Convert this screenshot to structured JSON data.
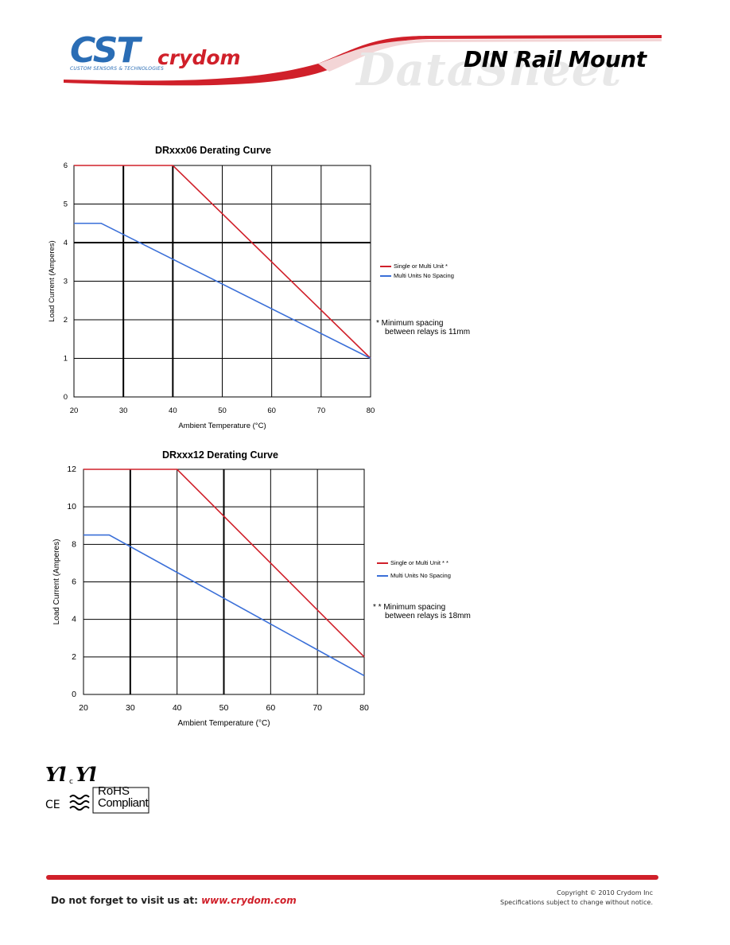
{
  "header": {
    "brand_cst": "CST",
    "brand_cst_subtitle": "CUSTOM SENSORS & TECHNOLOGIES",
    "brand_crydom": "crydom",
    "watermark": "DataSheet",
    "product_family": "DIN Rail Mount",
    "accent_color": "#d0202a",
    "brand_blue": "#2a6db5"
  },
  "charts": [
    {
      "title": "DRxxx06 Derating Curve",
      "legend": [
        {
          "label": "Single or Multi Unit *",
          "color": "#d0202a"
        },
        {
          "label": "Multi Units No Spacing",
          "color": "#3a6fd8"
        }
      ],
      "note_lines": [
        "*  Minimum spacing",
        "between relays is 11mm"
      ]
    },
    {
      "title": "DRxxx12 Derating Curve",
      "legend": [
        {
          "label": "Single or Multi Unit * *",
          "color": "#d0202a"
        },
        {
          "label": "Multi Units No Spacing",
          "color": "#3a6fd8"
        }
      ],
      "note_lines": [
        "* * Minimum spacing",
        "between relays is 18mm"
      ]
    }
  ],
  "chart_data": [
    {
      "type": "line",
      "title": "DRxxx06 Derating Curve",
      "xlabel": "Ambient Temperature (°C)",
      "ylabel": "Load Current (Amperes)",
      "xlim": [
        20,
        80
      ],
      "ylim": [
        0,
        6
      ],
      "xticks": [
        20,
        30,
        40,
        50,
        60,
        70,
        80
      ],
      "yticks": [
        0,
        1,
        2,
        3,
        4,
        5,
        6
      ],
      "grid": true,
      "legend_position": "right",
      "series": [
        {
          "name": "Single or Multi Unit *",
          "color": "#d0202a",
          "x": [
            20,
            40,
            80
          ],
          "y": [
            6,
            6,
            1
          ]
        },
        {
          "name": "Multi Units No Spacing",
          "color": "#3a6fd8",
          "x": [
            20,
            25.5,
            80
          ],
          "y": [
            4.5,
            4.5,
            1
          ]
        }
      ]
    },
    {
      "type": "line",
      "title": "DRxxx12 Derating Curve",
      "xlabel": "Ambient Temperature (°C)",
      "ylabel": "Load Current (Amperes)",
      "xlim": [
        20,
        80
      ],
      "ylim": [
        0,
        12
      ],
      "xticks": [
        20,
        30,
        40,
        50,
        60,
        70,
        80
      ],
      "yticks": [
        0,
        2,
        4,
        6,
        8,
        10,
        12
      ],
      "grid": true,
      "legend_position": "right",
      "series": [
        {
          "name": "Single or Multi Unit * *",
          "color": "#d0202a",
          "x": [
            20,
            40,
            80
          ],
          "y": [
            12,
            12,
            2
          ]
        },
        {
          "name": "Multi Units No Spacing",
          "color": "#3a6fd8",
          "x": [
            20,
            25.5,
            80
          ],
          "y": [
            8.5,
            8.5,
            1
          ]
        }
      ]
    }
  ],
  "certifications": {
    "ul_mark": "UL c UL",
    "ce_mark": "CE",
    "rohs_line1": "RoHS",
    "rohs_line2": "Compliant"
  },
  "footer": {
    "visit_prefix": "Do not forget to visit us at:",
    "visit_url": "www.crydom.com",
    "copyright_line1": "Copyright © 2010 Crydom Inc",
    "copyright_line2": "Specifications subject to change without notice."
  }
}
